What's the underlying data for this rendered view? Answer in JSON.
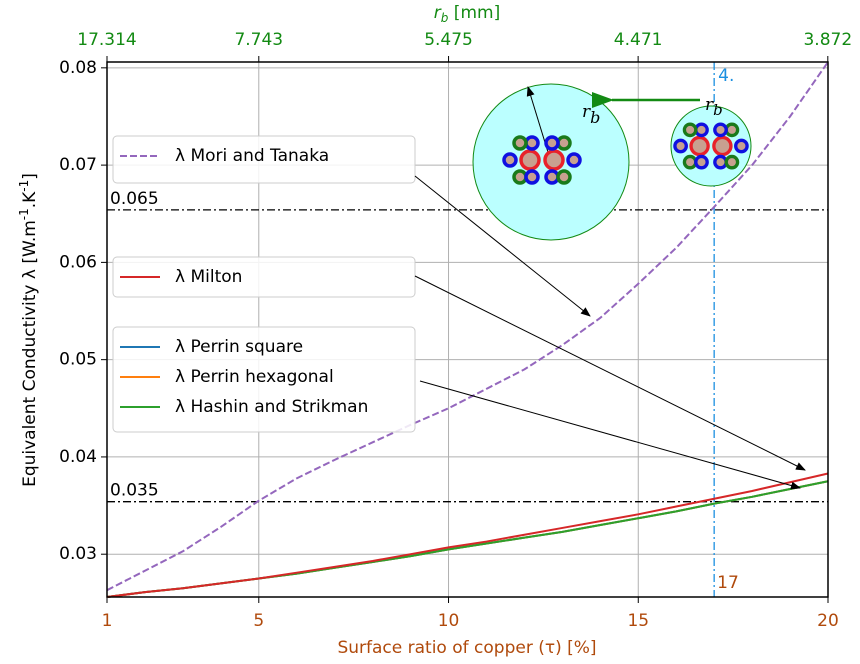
{
  "chart_data": {
    "type": "line",
    "ylabel": [
      "Equivalent Conductivity λ [W.m",
      "-1",
      ".K",
      "-1",
      "]"
    ],
    "xlabel": "Surface ratio of copper (τ) [%]",
    "x2label": [
      "r",
      "b",
      " [mm]"
    ],
    "x": [
      1,
      2,
      3,
      4,
      5,
      6,
      7,
      8,
      9,
      10,
      11,
      12,
      13,
      14,
      15,
      16,
      17,
      18,
      19,
      20
    ],
    "xlim": [
      1,
      20
    ],
    "xticks": [
      1,
      5,
      10,
      15,
      20
    ],
    "x2scale": "inverse-square",
    "x2ticks": [
      17.314,
      7.743,
      5.475,
      4.471,
      3.872
    ],
    "ylim": [
      0.0256,
      0.0806
    ],
    "yticks": [
      0.03,
      0.04,
      0.05,
      0.06,
      0.07,
      0.08
    ],
    "grid": true,
    "series": [
      {
        "name": "λ Mori and Tanaka",
        "color": "#9467bd",
        "dash": "dashed",
        "values": [
          0.0263,
          0.0283,
          0.0303,
          0.0328,
          0.0355,
          0.0378,
          0.0397,
          0.0415,
          0.0433,
          0.045,
          0.047,
          0.049,
          0.0515,
          0.0543,
          0.0578,
          0.0615,
          0.0657,
          0.07,
          0.075,
          0.0806
        ]
      },
      {
        "name": "λ Milton",
        "color": "#d62728",
        "values": [
          0.0256,
          0.0261,
          0.0265,
          0.027,
          0.0275,
          0.0281,
          0.0287,
          0.0293,
          0.03,
          0.0307,
          0.0313,
          0.032,
          0.0327,
          0.0334,
          0.0341,
          0.0349,
          0.0357,
          0.0365,
          0.0374,
          0.0383
        ]
      },
      {
        "name": "λ Perrin square",
        "color": "#1f77b4",
        "values": [
          0.0256,
          0.0261,
          0.0265,
          0.027,
          0.0275,
          0.028,
          0.0286,
          0.0292,
          0.0298,
          0.0305,
          0.0311,
          0.0317,
          0.0323,
          0.033,
          0.0337,
          0.0344,
          0.0352,
          0.0359,
          0.0367,
          0.0375
        ]
      },
      {
        "name": "λ Perrin hexagonal",
        "color": "#ff7f0e",
        "values": [
          0.0256,
          0.0261,
          0.0265,
          0.027,
          0.0275,
          0.028,
          0.0286,
          0.0292,
          0.0298,
          0.0305,
          0.0311,
          0.0317,
          0.0323,
          0.033,
          0.0337,
          0.0344,
          0.0352,
          0.0359,
          0.0367,
          0.0375
        ]
      },
      {
        "name": "λ Hashin and Strikman",
        "color": "#2ca02c",
        "values": [
          0.0256,
          0.0261,
          0.0265,
          0.027,
          0.0275,
          0.028,
          0.0286,
          0.0292,
          0.0298,
          0.0305,
          0.0311,
          0.0317,
          0.0323,
          0.033,
          0.0337,
          0.0344,
          0.0352,
          0.0359,
          0.0367,
          0.0375
        ]
      }
    ],
    "hlines": [
      {
        "value": 0.0654,
        "label": "0.065"
      },
      {
        "value": 0.0354,
        "label": "0.035"
      }
    ],
    "vline": {
      "value": 17,
      "label": "17",
      "top_label": "4."
    },
    "diagram_label": {
      "base": "r",
      "sub": "b"
    }
  }
}
